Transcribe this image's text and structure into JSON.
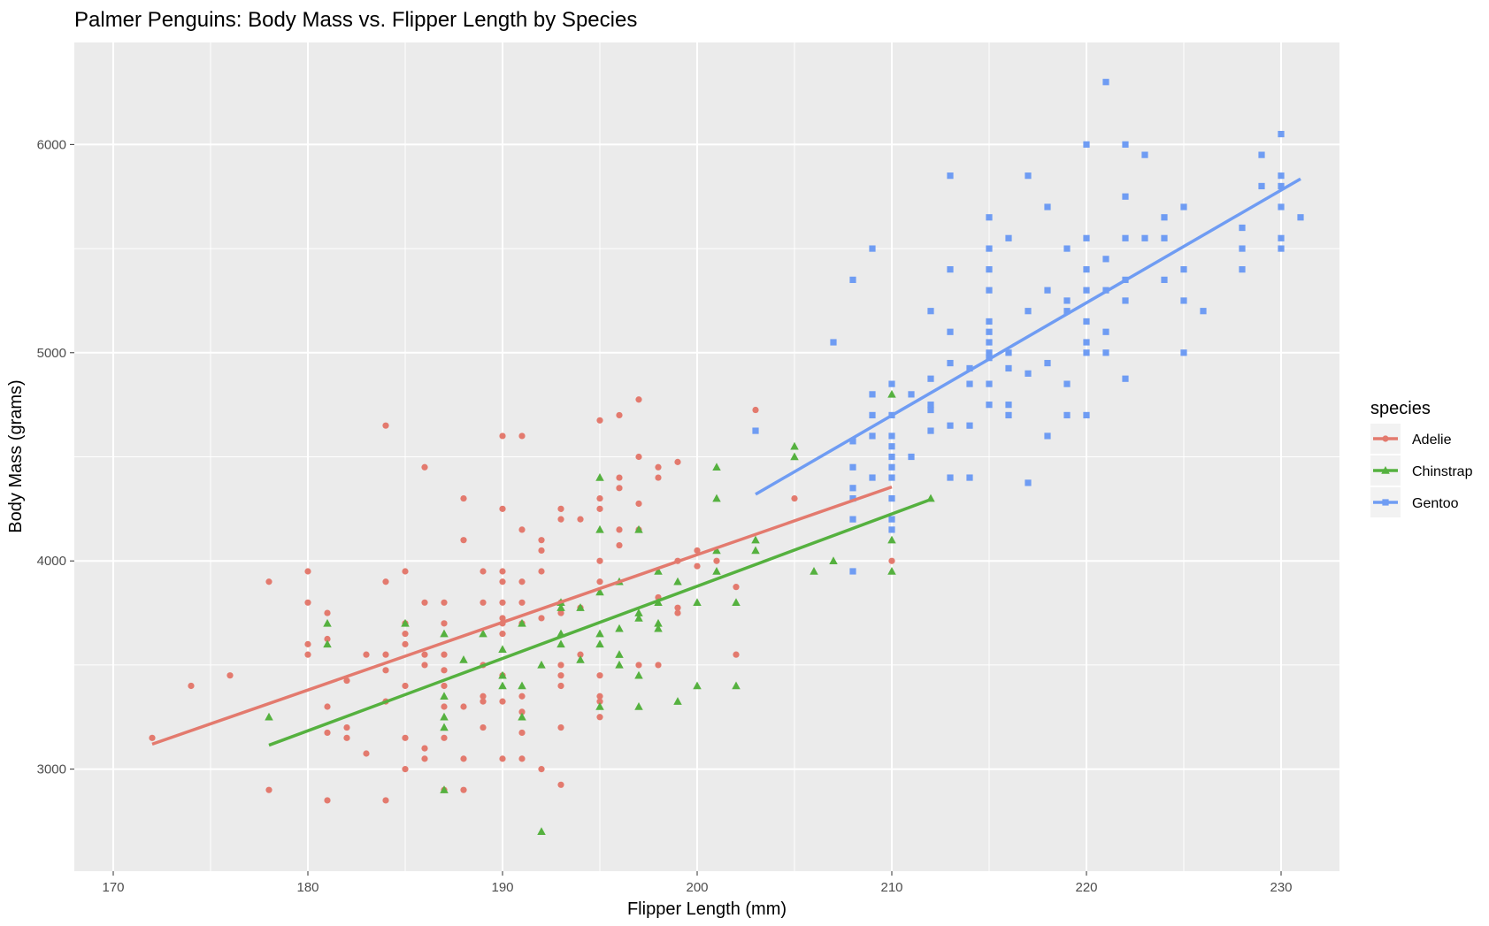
{
  "chart_data": {
    "type": "scatter",
    "title": "Palmer Penguins: Body Mass vs. Flipper Length by Species",
    "xlabel": "Flipper Length (mm)",
    "ylabel": "Body Mass (grams)",
    "xlim": [
      168,
      233
    ],
    "ylim": [
      2510,
      6490
    ],
    "x_ticks": [
      170,
      180,
      190,
      200,
      210,
      220,
      230
    ],
    "y_ticks": [
      3000,
      4000,
      5000,
      6000
    ],
    "grid": true,
    "legend": {
      "title": "species",
      "position": "right"
    },
    "background": "#EBEBEB",
    "series": [
      {
        "name": "Adelie",
        "color": "#E37A6E",
        "marker": "circle",
        "trend": {
          "x": [
            172,
            210
          ],
          "y": [
            3120,
            4355
          ]
        },
        "points": [
          [
            172,
            3150
          ],
          [
            174,
            3400
          ],
          [
            176,
            3450
          ],
          [
            178,
            3900
          ],
          [
            178,
            2900
          ],
          [
            180,
            3950
          ],
          [
            180,
            3800
          ],
          [
            180,
            3600
          ],
          [
            180,
            3550
          ],
          [
            181,
            3750
          ],
          [
            181,
            3625
          ],
          [
            181,
            3300
          ],
          [
            181,
            3175
          ],
          [
            181,
            2850
          ],
          [
            182,
            3425
          ],
          [
            182,
            3200
          ],
          [
            182,
            3150
          ],
          [
            183,
            3550
          ],
          [
            183,
            3075
          ],
          [
            184,
            4650
          ],
          [
            184,
            3900
          ],
          [
            184,
            3550
          ],
          [
            184,
            3475
          ],
          [
            184,
            3325
          ],
          [
            184,
            2850
          ],
          [
            185,
            3950
          ],
          [
            185,
            3700
          ],
          [
            185,
            3650
          ],
          [
            185,
            3600
          ],
          [
            185,
            3400
          ],
          [
            185,
            3150
          ],
          [
            185,
            3000
          ],
          [
            186,
            4450
          ],
          [
            186,
            3800
          ],
          [
            186,
            3550
          ],
          [
            186,
            3500
          ],
          [
            186,
            3100
          ],
          [
            186,
            3050
          ],
          [
            187,
            3800
          ],
          [
            187,
            3700
          ],
          [
            187,
            3550
          ],
          [
            187,
            3475
          ],
          [
            187,
            3400
          ],
          [
            187,
            3300
          ],
          [
            187,
            3150
          ],
          [
            187,
            2900
          ],
          [
            188,
            4300
          ],
          [
            188,
            4100
          ],
          [
            188,
            3300
          ],
          [
            188,
            3050
          ],
          [
            188,
            2900
          ],
          [
            189,
            3950
          ],
          [
            189,
            3800
          ],
          [
            189,
            3500
          ],
          [
            189,
            3350
          ],
          [
            189,
            3325
          ],
          [
            189,
            3200
          ],
          [
            190,
            4600
          ],
          [
            190,
            4250
          ],
          [
            190,
            3950
          ],
          [
            190,
            3900
          ],
          [
            190,
            3800
          ],
          [
            190,
            3725
          ],
          [
            190,
            3700
          ],
          [
            190,
            3650
          ],
          [
            190,
            3450
          ],
          [
            190,
            3325
          ],
          [
            190,
            3050
          ],
          [
            191,
            4600
          ],
          [
            191,
            4150
          ],
          [
            191,
            3900
          ],
          [
            191,
            3800
          ],
          [
            191,
            3700
          ],
          [
            191,
            3350
          ],
          [
            191,
            3275
          ],
          [
            191,
            3175
          ],
          [
            191,
            3050
          ],
          [
            192,
            4100
          ],
          [
            192,
            4050
          ],
          [
            192,
            3950
          ],
          [
            192,
            3725
          ],
          [
            192,
            3000
          ],
          [
            193,
            4250
          ],
          [
            193,
            4200
          ],
          [
            193,
            3800
          ],
          [
            193,
            3750
          ],
          [
            193,
            3500
          ],
          [
            193,
            3450
          ],
          [
            193,
            3400
          ],
          [
            193,
            3200
          ],
          [
            193,
            2925
          ],
          [
            194,
            4200
          ],
          [
            194,
            3775
          ],
          [
            194,
            3550
          ],
          [
            195,
            4675
          ],
          [
            195,
            4300
          ],
          [
            195,
            4250
          ],
          [
            195,
            4000
          ],
          [
            195,
            3900
          ],
          [
            195,
            3450
          ],
          [
            195,
            3350
          ],
          [
            195,
            3325
          ],
          [
            195,
            3250
          ],
          [
            196,
            4700
          ],
          [
            196,
            4400
          ],
          [
            196,
            4350
          ],
          [
            196,
            4150
          ],
          [
            196,
            4075
          ],
          [
            197,
            4775
          ],
          [
            197,
            4500
          ],
          [
            197,
            4275
          ],
          [
            197,
            4150
          ],
          [
            197,
            3500
          ],
          [
            198,
            4450
          ],
          [
            198,
            4400
          ],
          [
            198,
            3825
          ],
          [
            198,
            3500
          ],
          [
            199,
            4475
          ],
          [
            199,
            4000
          ],
          [
            199,
            3775
          ],
          [
            199,
            3750
          ],
          [
            200,
            4050
          ],
          [
            200,
            3975
          ],
          [
            201,
            4000
          ],
          [
            202,
            3875
          ],
          [
            202,
            3550
          ],
          [
            203,
            4725
          ],
          [
            205,
            4300
          ],
          [
            210,
            4000
          ]
        ]
      },
      {
        "name": "Chinstrap",
        "color": "#55B13F",
        "marker": "triangle",
        "trend": {
          "x": [
            178,
            212
          ],
          "y": [
            3115,
            4295
          ]
        },
        "points": [
          [
            178,
            3250
          ],
          [
            181,
            3700
          ],
          [
            181,
            3600
          ],
          [
            185,
            3700
          ],
          [
            187,
            3650
          ],
          [
            187,
            3350
          ],
          [
            187,
            3250
          ],
          [
            187,
            3200
          ],
          [
            187,
            2900
          ],
          [
            188,
            3525
          ],
          [
            189,
            3650
          ],
          [
            190,
            3575
          ],
          [
            190,
            3450
          ],
          [
            190,
            3400
          ],
          [
            191,
            3700
          ],
          [
            191,
            3400
          ],
          [
            191,
            3250
          ],
          [
            192,
            3500
          ],
          [
            192,
            2700
          ],
          [
            193,
            3800
          ],
          [
            193,
            3775
          ],
          [
            193,
            3650
          ],
          [
            193,
            3600
          ],
          [
            194,
            3775
          ],
          [
            194,
            3525
          ],
          [
            195,
            4400
          ],
          [
            195,
            4150
          ],
          [
            195,
            3850
          ],
          [
            195,
            3650
          ],
          [
            195,
            3600
          ],
          [
            195,
            3300
          ],
          [
            196,
            3900
          ],
          [
            196,
            3675
          ],
          [
            196,
            3550
          ],
          [
            196,
            3500
          ],
          [
            197,
            4150
          ],
          [
            197,
            3750
          ],
          [
            197,
            3725
          ],
          [
            197,
            3450
          ],
          [
            197,
            3300
          ],
          [
            198,
            3950
          ],
          [
            198,
            3800
          ],
          [
            198,
            3700
          ],
          [
            198,
            3675
          ],
          [
            199,
            3900
          ],
          [
            199,
            3325
          ],
          [
            200,
            3800
          ],
          [
            200,
            3400
          ],
          [
            201,
            4450
          ],
          [
            201,
            4300
          ],
          [
            201,
            4050
          ],
          [
            201,
            3950
          ],
          [
            202,
            3800
          ],
          [
            202,
            3400
          ],
          [
            203,
            4100
          ],
          [
            203,
            4050
          ],
          [
            205,
            4550
          ],
          [
            205,
            4500
          ],
          [
            206,
            3950
          ],
          [
            207,
            4000
          ],
          [
            210,
            4800
          ],
          [
            210,
            4100
          ],
          [
            210,
            3950
          ],
          [
            212,
            4300
          ]
        ]
      },
      {
        "name": "Gentoo",
        "color": "#6F9CF3",
        "marker": "square",
        "trend": {
          "x": [
            203,
            231
          ],
          "y": [
            4320,
            5835
          ]
        },
        "points": [
          [
            203,
            4625
          ],
          [
            207,
            5050
          ],
          [
            208,
            5350
          ],
          [
            208,
            4575
          ],
          [
            208,
            4450
          ],
          [
            208,
            4350
          ],
          [
            208,
            4300
          ],
          [
            208,
            4200
          ],
          [
            208,
            3950
          ],
          [
            209,
            5500
          ],
          [
            209,
            4800
          ],
          [
            209,
            4700
          ],
          [
            209,
            4600
          ],
          [
            209,
            4400
          ],
          [
            210,
            4850
          ],
          [
            210,
            4700
          ],
          [
            210,
            4600
          ],
          [
            210,
            4550
          ],
          [
            210,
            4500
          ],
          [
            210,
            4450
          ],
          [
            210,
            4400
          ],
          [
            210,
            4300
          ],
          [
            210,
            4200
          ],
          [
            210,
            4150
          ],
          [
            211,
            4800
          ],
          [
            211,
            4500
          ],
          [
            212,
            5200
          ],
          [
            212,
            4875
          ],
          [
            212,
            4750
          ],
          [
            212,
            4725
          ],
          [
            212,
            4625
          ],
          [
            213,
            5850
          ],
          [
            213,
            5400
          ],
          [
            213,
            5100
          ],
          [
            213,
            4950
          ],
          [
            213,
            4650
          ],
          [
            213,
            4400
          ],
          [
            214,
            4925
          ],
          [
            214,
            4850
          ],
          [
            214,
            4650
          ],
          [
            214,
            4400
          ],
          [
            215,
            5650
          ],
          [
            215,
            5500
          ],
          [
            215,
            5400
          ],
          [
            215,
            5300
          ],
          [
            215,
            5150
          ],
          [
            215,
            5100
          ],
          [
            215,
            5050
          ],
          [
            215,
            5000
          ],
          [
            215,
            4975
          ],
          [
            215,
            4850
          ],
          [
            215,
            4750
          ],
          [
            216,
            5550
          ],
          [
            216,
            5000
          ],
          [
            216,
            4925
          ],
          [
            216,
            4750
          ],
          [
            216,
            4700
          ],
          [
            217,
            5850
          ],
          [
            217,
            5200
          ],
          [
            217,
            4900
          ],
          [
            217,
            4375
          ],
          [
            218,
            5700
          ],
          [
            218,
            5300
          ],
          [
            218,
            4950
          ],
          [
            218,
            4600
          ],
          [
            219,
            5500
          ],
          [
            219,
            5250
          ],
          [
            219,
            5200
          ],
          [
            219,
            4850
          ],
          [
            219,
            4700
          ],
          [
            220,
            6000
          ],
          [
            220,
            5550
          ],
          [
            220,
            5400
          ],
          [
            220,
            5300
          ],
          [
            220,
            5150
          ],
          [
            220,
            5050
          ],
          [
            220,
            5000
          ],
          [
            220,
            4700
          ],
          [
            221,
            6300
          ],
          [
            221,
            5450
          ],
          [
            221,
            5300
          ],
          [
            221,
            5100
          ],
          [
            221,
            5000
          ],
          [
            222,
            6000
          ],
          [
            222,
            5750
          ],
          [
            222,
            5550
          ],
          [
            222,
            5350
          ],
          [
            222,
            5250
          ],
          [
            222,
            4875
          ],
          [
            223,
            5950
          ],
          [
            223,
            5550
          ],
          [
            224,
            5650
          ],
          [
            224,
            5550
          ],
          [
            224,
            5350
          ],
          [
            225,
            5700
          ],
          [
            225,
            5400
          ],
          [
            225,
            5250
          ],
          [
            225,
            5000
          ],
          [
            226,
            5200
          ],
          [
            228,
            5600
          ],
          [
            228,
            5500
          ],
          [
            228,
            5400
          ],
          [
            229,
            5950
          ],
          [
            229,
            5800
          ],
          [
            230,
            6050
          ],
          [
            230,
            5850
          ],
          [
            230,
            5800
          ],
          [
            230,
            5700
          ],
          [
            230,
            5550
          ],
          [
            230,
            5500
          ],
          [
            231,
            5650
          ]
        ]
      }
    ]
  }
}
